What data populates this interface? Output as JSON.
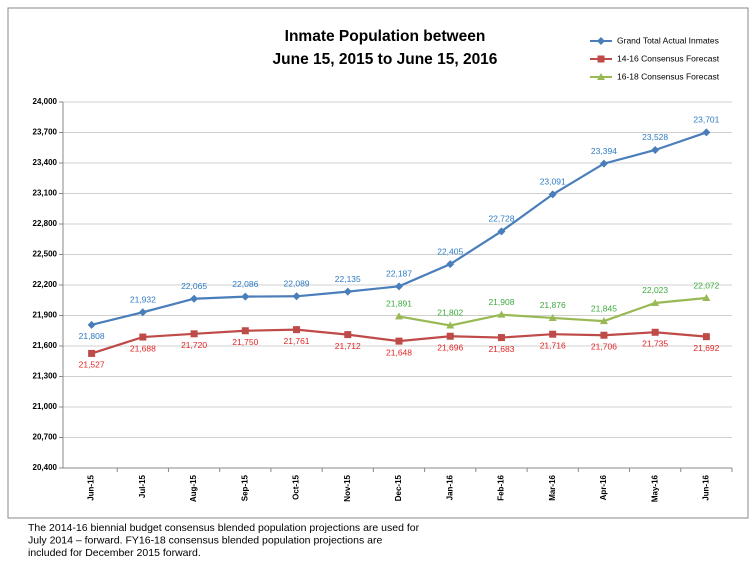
{
  "chart_data": {
    "type": "line",
    "title": [
      "Inmate Population between",
      "June 15, 2015 to June 15, 2016"
    ],
    "categories": [
      "Jun-15",
      "Jul-15",
      "Aug-15",
      "Sep-15",
      "Oct-15",
      "Nov-15",
      "Dec-15",
      "Jan-16",
      "Feb-16",
      "Mar-16",
      "Apr-16",
      "May-16",
      "Jun-16"
    ],
    "series": [
      {
        "name": "Grand Total Actual Inmates",
        "color": "#4a7ebb",
        "label_color": "#2e7bc4",
        "marker": "diamond",
        "values": [
          21808,
          21932,
          22065,
          22086,
          22089,
          22135,
          22187,
          22405,
          22728,
          23091,
          23394,
          23528,
          23701
        ],
        "value_labels": [
          "21,808",
          "21,932",
          "22,065",
          "22,086",
          "22,089",
          "22,135",
          "22,187",
          "22,405",
          "22,728",
          "23,091",
          "23,394",
          "23,528",
          "23,701"
        ]
      },
      {
        "name": "14-16 Consensus Forecast",
        "color": "#be4b48",
        "label_color": "#e02424",
        "marker": "square",
        "values": [
          21527,
          21688,
          21720,
          21750,
          21761,
          21712,
          21648,
          21696,
          21683,
          21716,
          21706,
          21735,
          21692
        ],
        "value_labels": [
          "21,527",
          "21,688",
          "21,720",
          "21,750",
          "21,761",
          "21,712",
          "21,648",
          "21,696",
          "21,683",
          "21,716",
          "21,706",
          "21,735",
          "21,692"
        ]
      },
      {
        "name": "16-18 Consensus Forecast",
        "color": "#98b954",
        "label_color": "#3daa3d",
        "marker": "triangle",
        "values": [
          null,
          null,
          null,
          null,
          null,
          null,
          21891,
          21802,
          21908,
          21876,
          21845,
          22023,
          22072
        ],
        "value_labels": [
          null,
          null,
          null,
          null,
          null,
          null,
          "21,891",
          "21,802",
          "21,908",
          "21,876",
          "21,845",
          "22,023",
          "22,072"
        ]
      }
    ],
    "ylim": [
      20400,
      24000
    ],
    "yticks": [
      {
        "value": 20400,
        "label": "20,400"
      },
      {
        "value": 20700,
        "label": "20,700"
      },
      {
        "value": 21000,
        "label": "21,000"
      },
      {
        "value": 21300,
        "label": "21,300"
      },
      {
        "value": 21600,
        "label": "21,600"
      },
      {
        "value": 21900,
        "label": "21,900"
      },
      {
        "value": 22200,
        "label": "22,200"
      },
      {
        "value": 22500,
        "label": "22,500"
      },
      {
        "value": 22800,
        "label": "22,800"
      },
      {
        "value": 23100,
        "label": "23,100"
      },
      {
        "value": 23400,
        "label": "23,400"
      },
      {
        "value": 23700,
        "label": "23,700"
      },
      {
        "value": 24000,
        "label": "24,000"
      }
    ],
    "grid": true,
    "legend": "upper right",
    "note": [
      "The 2014-16 biennial budget consensus blended population projections are used for",
      "July 2014 – forward.  FY16-18 consensus blended population projections are",
      "included for December 2015 forward."
    ]
  }
}
